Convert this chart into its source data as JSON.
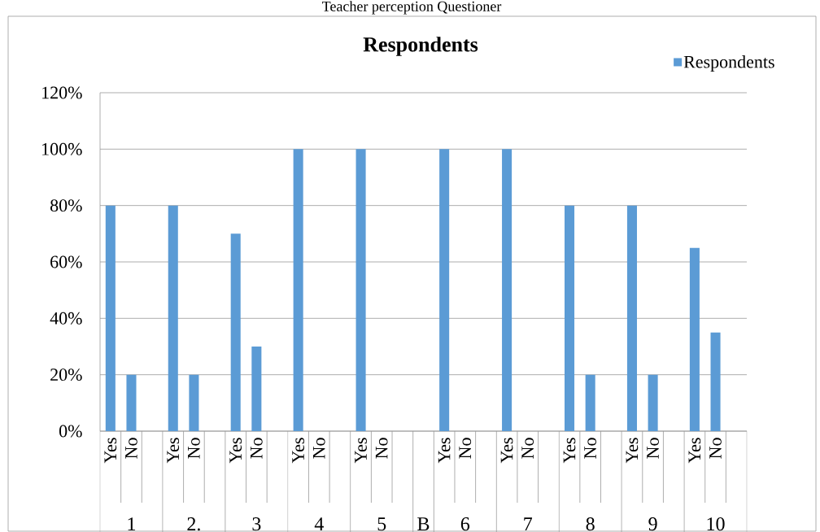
{
  "chart_data": {
    "type": "bar",
    "title": "Respondents",
    "annotations": [
      "Teacher perception Questioner",
      "1",
      "2.",
      "3",
      "4",
      "5",
      "B",
      "6",
      "7",
      "8",
      "9",
      "10"
    ],
    "categories": [
      "Yes",
      "No",
      null,
      "Yes",
      "No",
      null,
      "Yes",
      "No",
      null,
      "Yes",
      "No",
      null,
      "Yes",
      "No",
      null,
      null,
      "Yes",
      "No",
      null,
      "Yes",
      "No",
      null,
      "Yes",
      "No",
      null,
      "Yes",
      "No",
      null,
      "Yes",
      "No",
      null
    ],
    "series": [
      {
        "name": "Respondents",
        "color": "#5b9bd5",
        "values": [
          80,
          20,
          null,
          80,
          20,
          null,
          70,
          30,
          null,
          100,
          0,
          null,
          100,
          0,
          null,
          null,
          100,
          0,
          null,
          100,
          0,
          null,
          80,
          20,
          null,
          80,
          20,
          null,
          65,
          35,
          null
        ]
      }
    ],
    "ylim": [
      0,
      120
    ],
    "yticks": [
      {
        "value": 0,
        "label": "0%"
      },
      {
        "value": 20,
        "label": "20%"
      },
      {
        "value": 40,
        "label": "40%"
      },
      {
        "value": 60,
        "label": "60%"
      },
      {
        "value": 80,
        "label": "80%"
      },
      {
        "value": 100,
        "label": "100%"
      },
      {
        "value": 120,
        "label": "120%"
      }
    ],
    "grid": "y",
    "legend": "top right"
  }
}
